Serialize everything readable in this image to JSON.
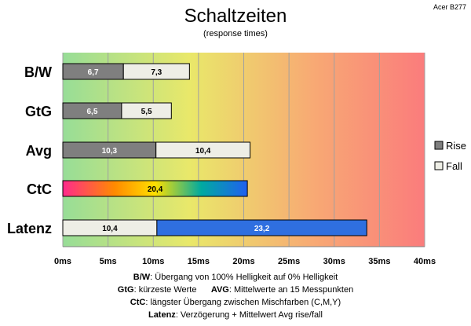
{
  "chart_data": {
    "type": "bar",
    "orientation": "horizontal",
    "stacked": true,
    "title": "Schaltzeiten",
    "subtitle": "(response times)",
    "corner_label": "Acer B277",
    "categories": [
      "B/W",
      "GtG",
      "Avg",
      "CtC",
      "Latenz"
    ],
    "series": [
      {
        "name": "Rise",
        "values": [
          6.7,
          6.5,
          10.3,
          null,
          null
        ],
        "labels": [
          "6,7",
          "6,5",
          "10,3",
          "",
          ""
        ],
        "color": "#7f7f7f"
      },
      {
        "name": "Fall",
        "values": [
          7.3,
          5.5,
          10.4,
          null,
          10.4
        ],
        "labels": [
          "7,3",
          "5,5",
          "10,4",
          "",
          "10,4"
        ],
        "color": "#eeeee6"
      },
      {
        "values": [
          null,
          null,
          null,
          20.4,
          null
        ],
        "labels": [
          "",
          "",
          "",
          "20,4",
          ""
        ],
        "style": "rainbow"
      },
      {
        "values": [
          null,
          null,
          null,
          null,
          23.2
        ],
        "labels": [
          "",
          "",
          "",
          "",
          "23,2"
        ],
        "color": "#2f6fe0"
      }
    ],
    "xlim": [
      0,
      40
    ],
    "xticks": [
      0,
      5,
      10,
      15,
      20,
      25,
      30,
      35,
      40
    ],
    "xtick_labels": [
      "0ms",
      "5ms",
      "10ms",
      "15ms",
      "20ms",
      "25ms",
      "30ms",
      "35ms",
      "40ms"
    ],
    "background_gradient": [
      "#97dd97",
      "#e9e86a",
      "#f8a874",
      "#fa7c7c"
    ],
    "legend_position": "right",
    "grid": true
  },
  "footnotes": [
    {
      "k1": "B/W",
      "t1": ":  Übergang von 100% Helligkeit auf 0% Helligkeit"
    },
    {
      "k1": "GtG",
      "t1": ": kürzeste  Werte",
      "k2": "AVG",
      "t2": ": Mittelwerte  an 15 Messpunkten"
    },
    {
      "k1": "CtC",
      "t1": ": längster Übergang  zwischen Mischfarben  (C,M,Y)"
    },
    {
      "k1": "Latenz",
      "t1": ": Verzögerung  + Mittelwert  Avg rise/fall"
    }
  ]
}
